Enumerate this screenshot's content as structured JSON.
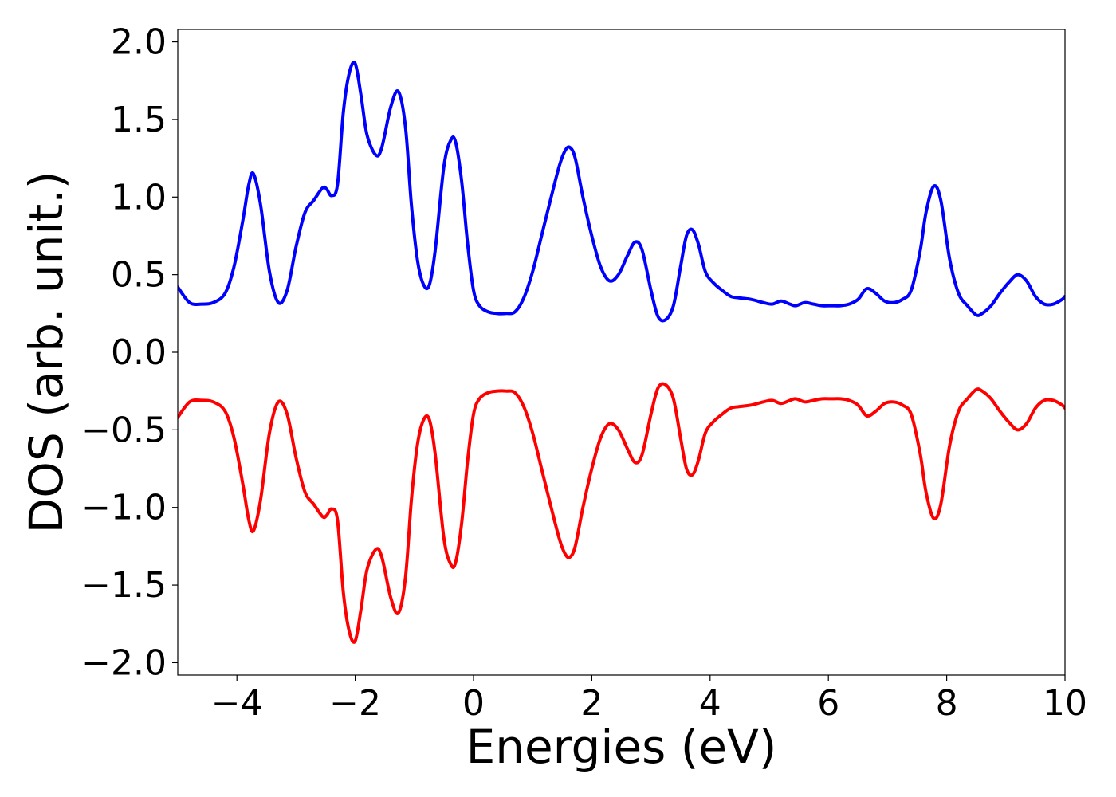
{
  "chart_data": {
    "type": "line",
    "title": "",
    "xlabel": "Energies (eV)",
    "ylabel": "DOS (arb. unit.)",
    "xlim": [
      -5,
      10
    ],
    "ylim": [
      -2.08,
      2.08
    ],
    "xticks": [
      -4,
      -2,
      0,
      2,
      4,
      6,
      8,
      10
    ],
    "xtick_labels": [
      "−4",
      "−2",
      "0",
      "2",
      "4",
      "6",
      "8",
      "10"
    ],
    "yticks": [
      2.0,
      1.5,
      1.0,
      0.5,
      0.0,
      -0.5,
      -1.0,
      -1.5,
      -2.0
    ],
    "ytick_labels": [
      "2.0",
      "1.5",
      "1.0",
      "0.5",
      "0.0",
      "−0.5",
      "−1.0",
      "−1.5",
      "−2.0"
    ],
    "grid": false,
    "legend": "none",
    "series": [
      {
        "color": "#0000ff",
        "x": [
          -5.0,
          -4.8,
          -4.6,
          -4.4,
          -4.2,
          -4.05,
          -3.9,
          -3.8,
          -3.72,
          -3.6,
          -3.45,
          -3.3,
          -3.15,
          -3.0,
          -2.85,
          -2.7,
          -2.55,
          -2.48,
          -2.4,
          -2.3,
          -2.2,
          -2.1,
          -2.0,
          -1.9,
          -1.8,
          -1.65,
          -1.55,
          -1.4,
          -1.27,
          -1.15,
          -1.05,
          -0.95,
          -0.85,
          -0.75,
          -0.65,
          -0.5,
          -0.38,
          -0.3,
          -0.2,
          -0.1,
          0.0,
          0.1,
          0.25,
          0.4,
          0.55,
          0.7,
          0.85,
          1.0,
          1.15,
          1.3,
          1.45,
          1.55,
          1.63,
          1.72,
          1.85,
          2.0,
          2.15,
          2.3,
          2.45,
          2.6,
          2.73,
          2.85,
          3.0,
          3.12,
          3.25,
          3.38,
          3.5,
          3.6,
          3.7,
          3.8,
          3.92,
          4.05,
          4.2,
          4.35,
          4.5,
          4.7,
          4.9,
          5.05,
          5.2,
          5.35,
          5.45,
          5.6,
          5.75,
          5.9,
          6.05,
          6.2,
          6.35,
          6.5,
          6.65,
          6.8,
          6.95,
          7.1,
          7.25,
          7.4,
          7.55,
          7.65,
          7.78,
          7.9,
          8.05,
          8.2,
          8.35,
          8.5,
          8.6,
          8.75,
          8.9,
          9.05,
          9.2,
          9.35,
          9.5,
          9.65,
          9.8,
          9.95,
          10.0
        ],
        "y": [
          0.42,
          0.32,
          0.31,
          0.32,
          0.38,
          0.55,
          0.85,
          1.08,
          1.15,
          0.95,
          0.52,
          0.32,
          0.4,
          0.68,
          0.9,
          0.98,
          1.06,
          1.05,
          1.01,
          1.08,
          1.55,
          1.8,
          1.86,
          1.65,
          1.4,
          1.27,
          1.32,
          1.58,
          1.68,
          1.45,
          0.95,
          0.6,
          0.44,
          0.43,
          0.65,
          1.2,
          1.37,
          1.35,
          1.1,
          0.7,
          0.4,
          0.3,
          0.26,
          0.25,
          0.25,
          0.26,
          0.35,
          0.52,
          0.75,
          0.98,
          1.2,
          1.3,
          1.32,
          1.25,
          1.0,
          0.75,
          0.55,
          0.46,
          0.5,
          0.62,
          0.71,
          0.66,
          0.4,
          0.23,
          0.21,
          0.3,
          0.55,
          0.75,
          0.79,
          0.7,
          0.52,
          0.45,
          0.4,
          0.36,
          0.35,
          0.34,
          0.32,
          0.31,
          0.33,
          0.31,
          0.3,
          0.32,
          0.31,
          0.3,
          0.3,
          0.3,
          0.31,
          0.34,
          0.41,
          0.38,
          0.33,
          0.32,
          0.34,
          0.4,
          0.65,
          0.9,
          1.07,
          0.98,
          0.6,
          0.38,
          0.3,
          0.24,
          0.25,
          0.3,
          0.38,
          0.45,
          0.5,
          0.46,
          0.36,
          0.31,
          0.31,
          0.34,
          0.36
        ]
      },
      {
        "color": "#ff0000",
        "x": [
          -5.0,
          -4.8,
          -4.6,
          -4.4,
          -4.2,
          -4.05,
          -3.9,
          -3.8,
          -3.72,
          -3.6,
          -3.45,
          -3.3,
          -3.15,
          -3.0,
          -2.85,
          -2.7,
          -2.55,
          -2.48,
          -2.4,
          -2.3,
          -2.2,
          -2.1,
          -2.0,
          -1.9,
          -1.8,
          -1.65,
          -1.55,
          -1.4,
          -1.27,
          -1.15,
          -1.05,
          -0.95,
          -0.85,
          -0.75,
          -0.65,
          -0.5,
          -0.38,
          -0.3,
          -0.2,
          -0.1,
          0.0,
          0.1,
          0.25,
          0.4,
          0.55,
          0.7,
          0.85,
          1.0,
          1.15,
          1.3,
          1.45,
          1.55,
          1.63,
          1.72,
          1.85,
          2.0,
          2.15,
          2.3,
          2.45,
          2.6,
          2.73,
          2.85,
          3.0,
          3.12,
          3.25,
          3.38,
          3.5,
          3.6,
          3.7,
          3.8,
          3.92,
          4.05,
          4.2,
          4.35,
          4.5,
          4.7,
          4.9,
          5.05,
          5.2,
          5.35,
          5.45,
          5.6,
          5.75,
          5.9,
          6.05,
          6.2,
          6.35,
          6.5,
          6.65,
          6.8,
          6.95,
          7.1,
          7.25,
          7.4,
          7.55,
          7.65,
          7.78,
          7.9,
          8.05,
          8.2,
          8.35,
          8.5,
          8.6,
          8.75,
          8.9,
          9.05,
          9.2,
          9.35,
          9.5,
          9.65,
          9.8,
          9.95,
          10.0
        ],
        "y": [
          -0.42,
          -0.32,
          -0.31,
          -0.32,
          -0.38,
          -0.55,
          -0.85,
          -1.08,
          -1.15,
          -0.95,
          -0.52,
          -0.32,
          -0.4,
          -0.68,
          -0.9,
          -0.98,
          -1.06,
          -1.05,
          -1.01,
          -1.08,
          -1.55,
          -1.8,
          -1.86,
          -1.65,
          -1.4,
          -1.27,
          -1.32,
          -1.58,
          -1.68,
          -1.45,
          -0.95,
          -0.6,
          -0.44,
          -0.43,
          -0.65,
          -1.2,
          -1.37,
          -1.35,
          -1.1,
          -0.7,
          -0.4,
          -0.3,
          -0.26,
          -0.25,
          -0.25,
          -0.26,
          -0.35,
          -0.52,
          -0.75,
          -0.98,
          -1.2,
          -1.3,
          -1.32,
          -1.25,
          -1.0,
          -0.75,
          -0.55,
          -0.46,
          -0.5,
          -0.62,
          -0.71,
          -0.66,
          -0.4,
          -0.23,
          -0.21,
          -0.3,
          -0.55,
          -0.75,
          -0.79,
          -0.7,
          -0.52,
          -0.45,
          -0.4,
          -0.36,
          -0.35,
          -0.34,
          -0.32,
          -0.31,
          -0.33,
          -0.31,
          -0.3,
          -0.32,
          -0.31,
          -0.3,
          -0.3,
          -0.3,
          -0.31,
          -0.34,
          -0.41,
          -0.38,
          -0.33,
          -0.32,
          -0.34,
          -0.4,
          -0.65,
          -0.9,
          -1.07,
          -0.98,
          -0.6,
          -0.38,
          -0.3,
          -0.24,
          -0.25,
          -0.3,
          -0.38,
          -0.45,
          -0.5,
          -0.46,
          -0.36,
          -0.31,
          -0.31,
          -0.34,
          -0.36
        ]
      }
    ]
  }
}
